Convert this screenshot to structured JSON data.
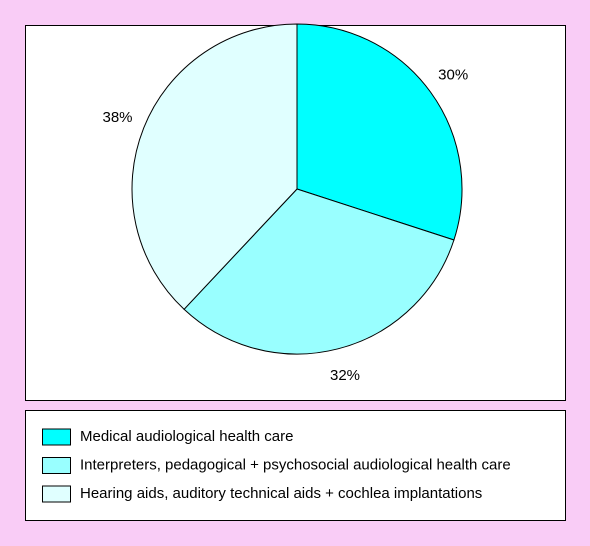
{
  "chart_data": {
    "type": "pie",
    "categories": [
      "Medical audiological health care",
      "Interpreters, pedagogical + psychosocial audiological health care",
      "Hearing aids, auditory technical aids + cochlea implantations"
    ],
    "values": [
      30,
      32,
      38
    ],
    "value_labels": [
      "30%",
      "32%",
      "38%"
    ],
    "colors": [
      "#00ffff",
      "#99ffff",
      "#e0ffff"
    ]
  }
}
